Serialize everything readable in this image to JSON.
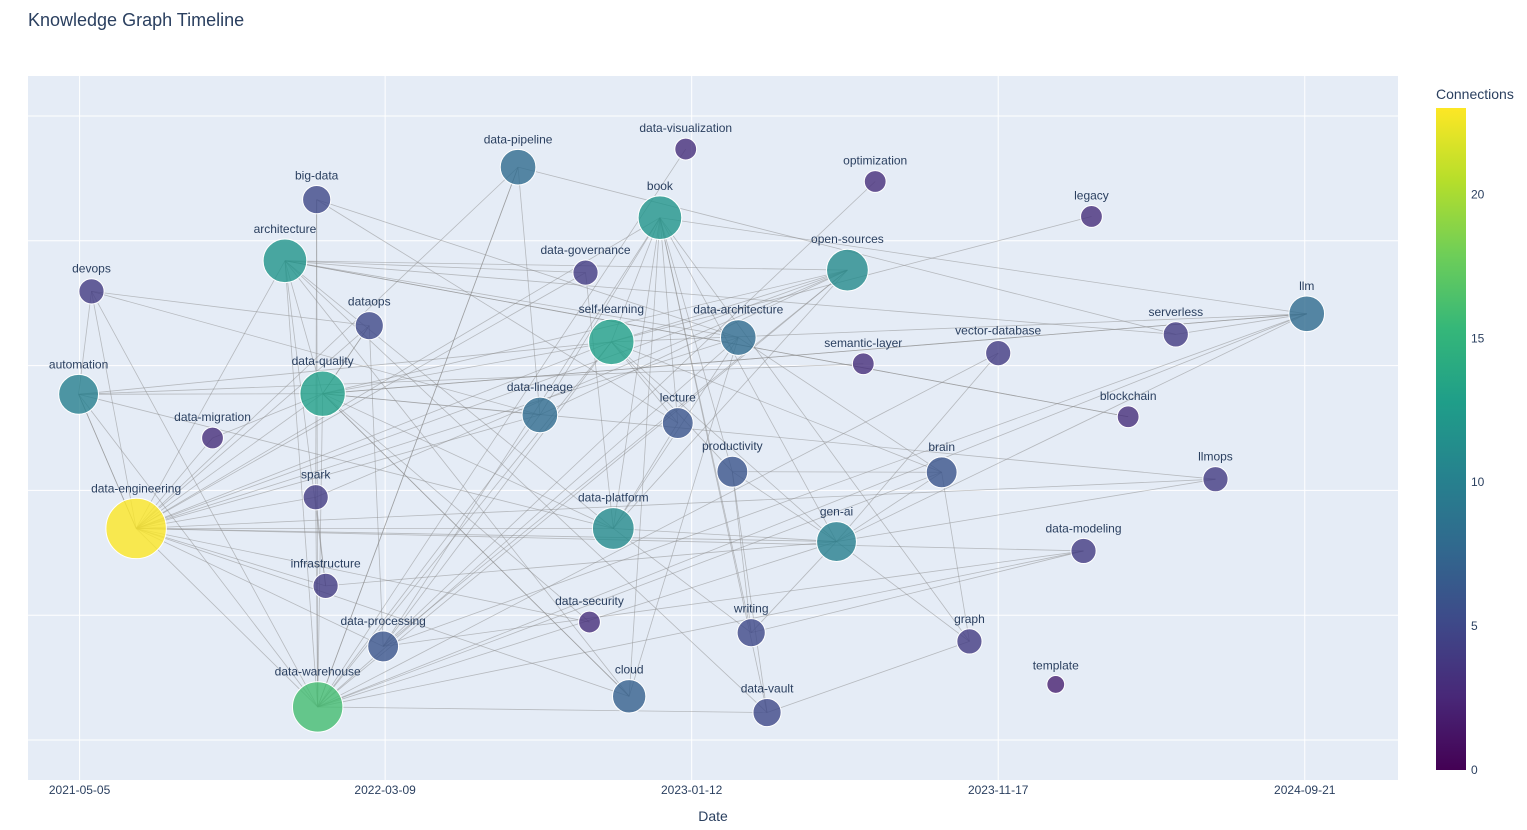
{
  "chart_data": {
    "type": "scatter",
    "title": "Knowledge Graph Timeline",
    "xlabel": "Date",
    "ylabel": "",
    "x_tick_labels": [
      "2021-05-05",
      "2022-03-09",
      "2023-01-12",
      "2023-11-17",
      "2024-09-21"
    ],
    "x_range": [
      "2021-03-14",
      "2024-12-24"
    ],
    "y_range": [
      0.0,
      1.0
    ],
    "grid": true,
    "colorbar": {
      "title": "Connections",
      "min": 0,
      "max": 23,
      "ticks": [
        0,
        5,
        10,
        15,
        20
      ],
      "colorscale": [
        "#440154",
        "#482878",
        "#3e4989",
        "#31688e",
        "#26828e",
        "#1f9e89",
        "#35b779",
        "#6ece58",
        "#b5de2b",
        "#fde725"
      ]
    },
    "nodes": [
      {
        "id": "data-pipeline",
        "label": "data-pipeline",
        "date": "2022-07-21",
        "y": 0.918,
        "connections": 8
      },
      {
        "id": "data-visualization",
        "label": "data-visualization",
        "date": "2023-01-06",
        "y": 0.947,
        "connections": 3
      },
      {
        "id": "optimization",
        "label": "optimization",
        "date": "2023-07-16",
        "y": 0.895,
        "connections": 3
      },
      {
        "id": "big-data",
        "label": "big-data",
        "date": "2021-12-30",
        "y": 0.866,
        "connections": 5
      },
      {
        "id": "book",
        "label": "book",
        "date": "2022-12-11",
        "y": 0.837,
        "connections": 12
      },
      {
        "id": "legacy",
        "label": "legacy",
        "date": "2024-02-19",
        "y": 0.839,
        "connections": 3
      },
      {
        "id": "architecture",
        "label": "architecture",
        "date": "2021-11-28",
        "y": 0.768,
        "connections": 12
      },
      {
        "id": "data-governance",
        "label": "data-governance",
        "date": "2022-09-27",
        "y": 0.749,
        "connections": 4
      },
      {
        "id": "open-sources",
        "label": "open-sources",
        "date": "2023-06-18",
        "y": 0.753,
        "connections": 11
      },
      {
        "id": "devops",
        "label": "devops",
        "date": "2021-05-17",
        "y": 0.719,
        "connections": 4
      },
      {
        "id": "dataops",
        "label": "dataops",
        "date": "2022-02-21",
        "y": 0.664,
        "connections": 5
      },
      {
        "id": "llm",
        "label": "llm",
        "date": "2024-09-23",
        "y": 0.683,
        "connections": 8
      },
      {
        "id": "serverless",
        "label": "serverless",
        "date": "2024-05-14",
        "y": 0.65,
        "connections": 4
      },
      {
        "id": "self-learning",
        "label": "self-learning",
        "date": "2022-10-23",
        "y": 0.638,
        "connections": 13
      },
      {
        "id": "data-architecture",
        "label": "data-architecture",
        "date": "2023-02-28",
        "y": 0.645,
        "connections": 8
      },
      {
        "id": "vector-database",
        "label": "vector-database",
        "date": "2023-11-17",
        "y": 0.62,
        "connections": 4
      },
      {
        "id": "semantic-layer",
        "label": "semantic-layer",
        "date": "2023-07-04",
        "y": 0.603,
        "connections": 3
      },
      {
        "id": "automation",
        "label": "automation",
        "date": "2021-05-04",
        "y": 0.554,
        "connections": 10
      },
      {
        "id": "data-quality",
        "label": "data-quality",
        "date": "2022-01-05",
        "y": 0.555,
        "connections": 13
      },
      {
        "id": "data-lineage",
        "label": "data-lineage",
        "date": "2022-08-12",
        "y": 0.521,
        "connections": 8
      },
      {
        "id": "blockchain",
        "label": "blockchain",
        "date": "2024-03-27",
        "y": 0.518,
        "connections": 3
      },
      {
        "id": "lecture",
        "label": "lecture",
        "date": "2022-12-29",
        "y": 0.508,
        "connections": 6
      },
      {
        "id": "data-migration",
        "label": "data-migration",
        "date": "2021-09-16",
        "y": 0.484,
        "connections": 3
      },
      {
        "id": "productivity",
        "label": "productivity",
        "date": "2023-02-22",
        "y": 0.43,
        "connections": 6
      },
      {
        "id": "brain",
        "label": "brain",
        "date": "2023-09-21",
        "y": 0.429,
        "connections": 6
      },
      {
        "id": "llmops",
        "label": "llmops",
        "date": "2024-06-23",
        "y": 0.418,
        "connections": 4
      },
      {
        "id": "spark",
        "label": "spark",
        "date": "2021-12-29",
        "y": 0.389,
        "connections": 4
      },
      {
        "id": "data-engineering",
        "label": "data-engineering",
        "date": "2021-07-01",
        "y": 0.339,
        "connections": 23
      },
      {
        "id": "data-platform",
        "label": "data-platform",
        "date": "2022-10-25",
        "y": 0.339,
        "connections": 11
      },
      {
        "id": "gen-ai",
        "label": "gen-ai",
        "date": "2023-06-07",
        "y": 0.318,
        "connections": 10
      },
      {
        "id": "data-modeling",
        "label": "data-modeling",
        "date": "2024-02-11",
        "y": 0.303,
        "connections": 4
      },
      {
        "id": "infrastructure",
        "label": "infrastructure",
        "date": "2022-01-08",
        "y": 0.247,
        "connections": 4
      },
      {
        "id": "data-security",
        "label": "data-security",
        "date": "2022-10-01",
        "y": 0.189,
        "connections": 3
      },
      {
        "id": "writing",
        "label": "writing",
        "date": "2023-03-13",
        "y": 0.172,
        "connections": 5
      },
      {
        "id": "graph",
        "label": "graph",
        "date": "2023-10-19",
        "y": 0.158,
        "connections": 4
      },
      {
        "id": "data-processing",
        "label": "data-processing",
        "date": "2022-03-07",
        "y": 0.15,
        "connections": 6
      },
      {
        "id": "template",
        "label": "template",
        "date": "2024-01-14",
        "y": 0.089,
        "connections": 2
      },
      {
        "id": "cloud",
        "label": "cloud",
        "date": "2022-11-10",
        "y": 0.07,
        "connections": 7
      },
      {
        "id": "data-warehouse",
        "label": "data-warehouse",
        "date": "2021-12-31",
        "y": 0.053,
        "connections": 16
      },
      {
        "id": "data-vault",
        "label": "data-vault",
        "date": "2023-03-29",
        "y": 0.044,
        "connections": 5
      }
    ],
    "edges": [
      [
        "data-engineering",
        "architecture"
      ],
      [
        "data-engineering",
        "data-pipeline"
      ],
      [
        "data-engineering",
        "data-quality"
      ],
      [
        "data-engineering",
        "data-lineage"
      ],
      [
        "data-engineering",
        "self-learning"
      ],
      [
        "data-engineering",
        "book"
      ],
      [
        "data-engineering",
        "open-sources"
      ],
      [
        "data-engineering",
        "data-platform"
      ],
      [
        "data-engineering",
        "gen-ai"
      ],
      [
        "data-engineering",
        "infrastructure"
      ],
      [
        "data-engineering",
        "data-warehouse"
      ],
      [
        "data-engineering",
        "data-security"
      ],
      [
        "data-engineering",
        "cloud"
      ],
      [
        "data-engineering",
        "automation"
      ],
      [
        "data-engineering",
        "devops"
      ],
      [
        "data-engineering",
        "data-migration"
      ],
      [
        "data-engineering",
        "dataops"
      ],
      [
        "data-engineering",
        "data-architecture"
      ],
      [
        "data-engineering",
        "llmops"
      ],
      [
        "data-engineering",
        "spark"
      ],
      [
        "data-engineering",
        "data-governance"
      ],
      [
        "data-engineering",
        "data-processing"
      ],
      [
        "data-engineering",
        "data-modeling"
      ],
      [
        "data-warehouse",
        "self-learning"
      ],
      [
        "data-warehouse",
        "data-quality"
      ],
      [
        "data-warehouse",
        "data-architecture"
      ],
      [
        "data-warehouse",
        "data-vault"
      ],
      [
        "data-warehouse",
        "open-sources"
      ],
      [
        "data-warehouse",
        "data-lineage"
      ],
      [
        "data-warehouse",
        "gen-ai"
      ],
      [
        "data-warehouse",
        "llm"
      ],
      [
        "data-warehouse",
        "automation"
      ],
      [
        "data-warehouse",
        "devops"
      ],
      [
        "data-warehouse",
        "data-modeling"
      ],
      [
        "data-warehouse",
        "brain"
      ],
      [
        "data-warehouse",
        "architecture"
      ],
      [
        "data-warehouse",
        "data-pipeline"
      ],
      [
        "book",
        "self-learning"
      ],
      [
        "book",
        "lecture"
      ],
      [
        "book",
        "productivity"
      ],
      [
        "book",
        "writing"
      ],
      [
        "book",
        "data-platform"
      ],
      [
        "book",
        "gen-ai"
      ],
      [
        "book",
        "data-vault"
      ],
      [
        "book",
        "graph"
      ],
      [
        "book",
        "llm"
      ],
      [
        "book",
        "data-processing"
      ],
      [
        "book",
        "cloud"
      ],
      [
        "book",
        "data-lineage"
      ],
      [
        "self-learning",
        "lecture"
      ],
      [
        "self-learning",
        "productivity"
      ],
      [
        "self-learning",
        "data-processing"
      ],
      [
        "self-learning",
        "gen-ai"
      ],
      [
        "self-learning",
        "open-sources"
      ],
      [
        "self-learning",
        "llm"
      ],
      [
        "self-learning",
        "automation"
      ],
      [
        "self-learning",
        "data-quality"
      ],
      [
        "self-learning",
        "brain"
      ],
      [
        "architecture",
        "data-platform"
      ],
      [
        "architecture",
        "serverless"
      ],
      [
        "architecture",
        "open-sources"
      ],
      [
        "architecture",
        "data-architecture"
      ],
      [
        "architecture",
        "cloud"
      ],
      [
        "architecture",
        "data-quality"
      ],
      [
        "architecture",
        "infrastructure"
      ],
      [
        "architecture",
        "data-vault"
      ],
      [
        "architecture",
        "blockchain"
      ],
      [
        "open-sources",
        "data-quality"
      ],
      [
        "open-sources",
        "data-platform"
      ],
      [
        "open-sources",
        "data-lineage"
      ],
      [
        "open-sources",
        "data-processing"
      ],
      [
        "open-sources",
        "spark"
      ],
      [
        "gen-ai",
        "llm"
      ],
      [
        "gen-ai",
        "vector-database"
      ],
      [
        "gen-ai",
        "productivity"
      ],
      [
        "gen-ai",
        "graph"
      ],
      [
        "gen-ai",
        "infrastructure"
      ],
      [
        "gen-ai",
        "llmops"
      ],
      [
        "gen-ai",
        "writing"
      ],
      [
        "gen-ai",
        "brain"
      ],
      [
        "gen-ai",
        "data-platform"
      ],
      [
        "data-quality",
        "data-lineage"
      ],
      [
        "data-quality",
        "data-platform"
      ],
      [
        "data-quality",
        "dataops"
      ],
      [
        "data-quality",
        "automation"
      ],
      [
        "data-quality",
        "cloud"
      ],
      [
        "data-quality",
        "llm"
      ],
      [
        "data-pipeline",
        "data-lineage"
      ],
      [
        "data-pipeline",
        "serverless"
      ],
      [
        "data-pipeline",
        "data-warehouse"
      ],
      [
        "data-platform",
        "data-architecture"
      ],
      [
        "data-platform",
        "data-governance"
      ],
      [
        "data-platform",
        "lecture"
      ],
      [
        "data-platform",
        "automation"
      ],
      [
        "llm",
        "serverless"
      ],
      [
        "llm",
        "data-processing"
      ],
      [
        "llm",
        "data-quality"
      ],
      [
        "devops",
        "automation"
      ],
      [
        "devops",
        "dataops"
      ],
      [
        "devops",
        "data-lineage"
      ],
      [
        "big-data",
        "spark"
      ],
      [
        "big-data",
        "data-warehouse"
      ],
      [
        "big-data",
        "lecture"
      ],
      [
        "big-data",
        "data-architecture"
      ],
      [
        "dataops",
        "data-quality"
      ],
      [
        "dataops",
        "data-processing"
      ],
      [
        "data-architecture",
        "cloud"
      ],
      [
        "data-architecture",
        "brain"
      ],
      [
        "productivity",
        "brain"
      ],
      [
        "productivity",
        "writing"
      ],
      [
        "data-modeling",
        "data-processing"
      ],
      [
        "data-modeling",
        "writing"
      ],
      [
        "data-vault",
        "graph"
      ],
      [
        "data-vault",
        "productivity"
      ],
      [
        "brain",
        "graph"
      ],
      [
        "optimization",
        "data-processing"
      ],
      [
        "legacy",
        "self-learning"
      ],
      [
        "data-visualization",
        "data-warehouse"
      ],
      [
        "data-governance",
        "architecture"
      ],
      [
        "semantic-layer",
        "automation"
      ],
      [
        "vector-database",
        "data-warehouse"
      ],
      [
        "blockchain",
        "architecture"
      ],
      [
        "llmops",
        "data-quality"
      ],
      [
        "data-security",
        "data-quality"
      ],
      [
        "spark",
        "data-warehouse"
      ],
      [
        "automation",
        "data-engineering"
      ],
      [
        "data-migration",
        "data-quality"
      ],
      [
        "infrastructure",
        "spark"
      ],
      [
        "cloud",
        "data-quality"
      ],
      [
        "writing",
        "data-platform"
      ]
    ]
  }
}
